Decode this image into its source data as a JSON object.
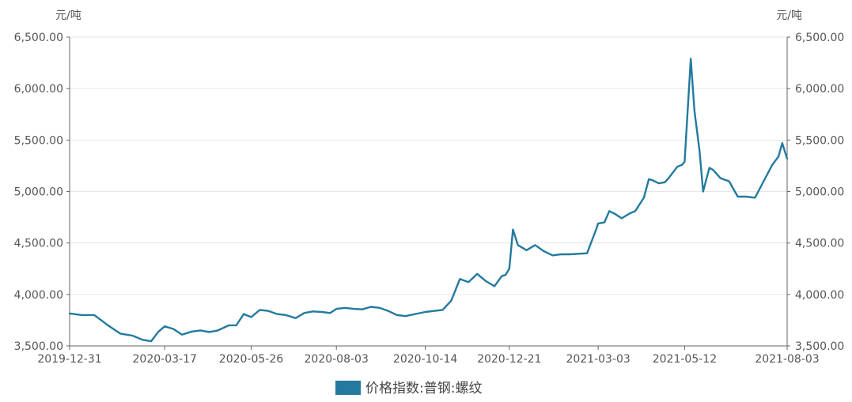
{
  "chart_data": {
    "type": "line",
    "title": "",
    "y_unit_left": "元/吨",
    "y_unit_right": "元/吨",
    "ylim": [
      3500,
      6500
    ],
    "y_ticks": [
      3500,
      4000,
      4500,
      5000,
      5500,
      6000,
      6500
    ],
    "y_tick_labels": [
      "3,500.00",
      "4,000.00",
      "4,500.00",
      "5,000.00",
      "5,500.00",
      "6,000.00",
      "6,500.00"
    ],
    "x_tick_labels": [
      "2019-12-31",
      "2020-03-17",
      "2020-05-26",
      "2020-08-03",
      "2020-10-14",
      "2020-12-21",
      "2021-03-03",
      "2021-05-12",
      "2021-08-03"
    ],
    "grid": "horizontal",
    "legend_position": "bottom-center",
    "colors": {
      "series": "#237a9e",
      "grid": "#e6e6e6",
      "axis": "#666666"
    },
    "series": [
      {
        "name": "价格指数:普钢:螺纹",
        "x": [
          "2019-12-31",
          "2020-01-10",
          "2020-01-20",
          "2020-01-31",
          "2020-02-10",
          "2020-02-20",
          "2020-02-28",
          "2020-03-06",
          "2020-03-12",
          "2020-03-17",
          "2020-03-24",
          "2020-03-31",
          "2020-04-08",
          "2020-04-15",
          "2020-04-22",
          "2020-04-29",
          "2020-05-08",
          "2020-05-14",
          "2020-05-20",
          "2020-05-26",
          "2020-06-02",
          "2020-06-09",
          "2020-06-16",
          "2020-06-23",
          "2020-07-01",
          "2020-07-08",
          "2020-07-15",
          "2020-07-22",
          "2020-07-29",
          "2020-08-03",
          "2020-08-10",
          "2020-08-17",
          "2020-08-24",
          "2020-08-31",
          "2020-09-07",
          "2020-09-14",
          "2020-09-21",
          "2020-09-28",
          "2020-10-14",
          "2020-10-21",
          "2020-10-28",
          "2020-11-04",
          "2020-11-11",
          "2020-11-18",
          "2020-11-25",
          "2020-12-02",
          "2020-12-09",
          "2020-12-15",
          "2020-12-18",
          "2020-12-21",
          "2020-12-24",
          "2020-12-28",
          "2021-01-04",
          "2021-01-11",
          "2021-01-18",
          "2021-01-25",
          "2021-02-01",
          "2021-02-08",
          "2021-02-22",
          "2021-03-01",
          "2021-03-03",
          "2021-03-08",
          "2021-03-12",
          "2021-03-17",
          "2021-03-22",
          "2021-03-29",
          "2021-04-02",
          "2021-04-09",
          "2021-04-13",
          "2021-04-16",
          "2021-04-21",
          "2021-04-26",
          "2021-04-29",
          "2021-05-06",
          "2021-05-10",
          "2021-05-12",
          "2021-05-14",
          "2021-05-17",
          "2021-05-20",
          "2021-05-24",
          "2021-05-27",
          "2021-06-01",
          "2021-06-04",
          "2021-06-10",
          "2021-06-17",
          "2021-06-24",
          "2021-07-01",
          "2021-07-08",
          "2021-07-15",
          "2021-07-22",
          "2021-07-27",
          "2021-07-30",
          "2021-08-03"
        ],
        "y": [
          3815,
          3800,
          3800,
          3700,
          3620,
          3600,
          3560,
          3545,
          3640,
          3690,
          3665,
          3610,
          3640,
          3650,
          3635,
          3650,
          3700,
          3700,
          3810,
          3780,
          3850,
          3840,
          3810,
          3800,
          3770,
          3820,
          3835,
          3830,
          3820,
          3860,
          3870,
          3860,
          3855,
          3880,
          3870,
          3840,
          3800,
          3790,
          3830,
          3840,
          3850,
          3940,
          4150,
          4120,
          4200,
          4130,
          4080,
          4180,
          4190,
          4250,
          4630,
          4480,
          4430,
          4480,
          4420,
          4380,
          4390,
          4390,
          4400,
          4620,
          4690,
          4700,
          4810,
          4780,
          4740,
          4790,
          4810,
          4940,
          5120,
          5110,
          5080,
          5090,
          5130,
          5240,
          5260,
          5290,
          5700,
          6290,
          5780,
          5400,
          5000,
          5230,
          5210,
          5130,
          5100,
          4950,
          4950,
          4940,
          5100,
          5260,
          5340,
          5470,
          5320
        ]
      }
    ]
  }
}
